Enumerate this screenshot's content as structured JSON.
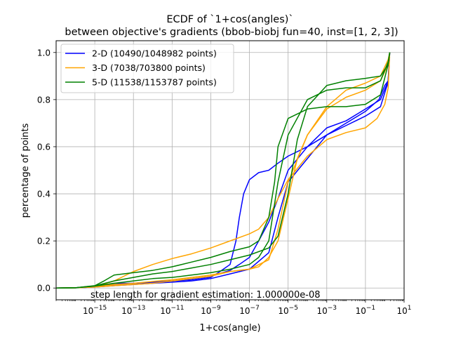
{
  "chart_data": {
    "type": "line",
    "title": [
      "ECDF of `1+cos(angles)`",
      "between objective's gradients (bbob-biobj fun=40, inst=[1, 2, 3])"
    ],
    "xlabel": "1+cos(angle)",
    "ylabel": "percentage of points",
    "xscale": "log",
    "xlim": [
      1e-17,
      10.0
    ],
    "ylim": [
      -0.05,
      1.05
    ],
    "xticks": [
      1e-15,
      1e-13,
      1e-11,
      1e-09,
      1e-07,
      1e-05,
      0.001,
      0.1,
      10.0
    ],
    "xtick_labels": [
      {
        "base": "10",
        "exp": "−15"
      },
      {
        "base": "10",
        "exp": "−13"
      },
      {
        "base": "10",
        "exp": "−11"
      },
      {
        "base": "10",
        "exp": "−9"
      },
      {
        "base": "10",
        "exp": "−7"
      },
      {
        "base": "10",
        "exp": "−5"
      },
      {
        "base": "10",
        "exp": "−3"
      },
      {
        "base": "10",
        "exp": "−1"
      },
      {
        "base": "10",
        "exp": "1"
      }
    ],
    "yticks": [
      0.0,
      0.2,
      0.4,
      0.6,
      0.8,
      1.0
    ],
    "ytick_labels": [
      "0.0",
      "0.2",
      "0.4",
      "0.6",
      "0.8",
      "1.0"
    ],
    "grid": true,
    "legend_position": "top-left",
    "annotation": "step length for gradient estimation: 1.000000e-08",
    "series": [
      {
        "name": "2-D (10490/1048982 points)",
        "color": "#0000ff",
        "curves": [
          [
            [
              1e-17,
              0
            ],
            [
              1e-16,
              0.001
            ],
            [
              3e-16,
              0.002
            ],
            [
              1e-15,
              0.005
            ],
            [
              1e-14,
              0.02
            ],
            [
              1e-13,
              0.02
            ],
            [
              1e-12,
              0.025
            ],
            [
              1e-11,
              0.03
            ],
            [
              1e-10,
              0.035
            ],
            [
              1e-09,
              0.045
            ],
            [
              3e-09,
              0.07
            ],
            [
              1e-08,
              0.1
            ],
            [
              2e-08,
              0.2
            ],
            [
              3e-08,
              0.3
            ],
            [
              5e-08,
              0.4
            ],
            [
              1e-07,
              0.46
            ],
            [
              3e-07,
              0.49
            ],
            [
              1e-06,
              0.5
            ],
            [
              3e-06,
              0.53
            ],
            [
              1e-05,
              0.56
            ],
            [
              0.0001,
              0.6
            ],
            [
              0.001,
              0.65
            ],
            [
              0.01,
              0.69
            ],
            [
              0.1,
              0.73
            ],
            [
              0.6,
              0.77
            ],
            [
              1.2,
              0.85
            ],
            [
              1.5,
              0.87
            ],
            [
              1.8,
              1.0
            ]
          ],
          [
            [
              1e-17,
              0
            ],
            [
              1e-16,
              0.001
            ],
            [
              1e-15,
              0.004
            ],
            [
              1e-14,
              0.01
            ],
            [
              1e-13,
              0.015
            ],
            [
              1e-12,
              0.02
            ],
            [
              1e-11,
              0.025
            ],
            [
              1e-10,
              0.03
            ],
            [
              1e-09,
              0.04
            ],
            [
              1e-08,
              0.06
            ],
            [
              1e-07,
              0.08
            ],
            [
              1e-06,
              0.15
            ],
            [
              3e-06,
              0.3
            ],
            [
              1e-05,
              0.45
            ],
            [
              0.0001,
              0.55
            ],
            [
              0.001,
              0.65
            ],
            [
              0.01,
              0.7
            ],
            [
              0.1,
              0.75
            ],
            [
              0.5,
              0.8
            ],
            [
              1.0,
              0.86
            ],
            [
              1.5,
              0.88
            ],
            [
              1.8,
              1.0
            ]
          ],
          [
            [
              1e-17,
              0
            ],
            [
              1e-16,
              0.001
            ],
            [
              1e-15,
              0.006
            ],
            [
              1e-14,
              0.015
            ],
            [
              1e-13,
              0.02
            ],
            [
              1e-12,
              0.025
            ],
            [
              1e-11,
              0.03
            ],
            [
              1e-10,
              0.04
            ],
            [
              1e-09,
              0.05
            ],
            [
              1e-08,
              0.075
            ],
            [
              3e-08,
              0.1
            ],
            [
              1e-07,
              0.13
            ],
            [
              3e-07,
              0.2
            ],
            [
              1e-06,
              0.28
            ],
            [
              3e-06,
              0.38
            ],
            [
              1e-05,
              0.5
            ],
            [
              0.0001,
              0.6
            ],
            [
              0.001,
              0.68
            ],
            [
              0.01,
              0.71
            ],
            [
              0.1,
              0.76
            ],
            [
              0.6,
              0.8
            ],
            [
              1.2,
              0.86
            ],
            [
              1.5,
              0.88
            ],
            [
              1.8,
              1.0
            ]
          ]
        ]
      },
      {
        "name": "3-D (7038/703800 points)",
        "color": "#ffa500",
        "curves": [
          [
            [
              1e-17,
              0
            ],
            [
              1e-16,
              0.001
            ],
            [
              1e-15,
              0.005
            ],
            [
              1e-14,
              0.03
            ],
            [
              1e-13,
              0.07
            ],
            [
              1e-12,
              0.1
            ],
            [
              1e-11,
              0.125
            ],
            [
              1e-10,
              0.145
            ],
            [
              1e-09,
              0.17
            ],
            [
              1e-08,
              0.2
            ],
            [
              1e-07,
              0.23
            ],
            [
              3e-07,
              0.25
            ],
            [
              1e-06,
              0.3
            ],
            [
              3e-06,
              0.38
            ],
            [
              1e-05,
              0.46
            ],
            [
              0.0001,
              0.56
            ],
            [
              0.001,
              0.63
            ],
            [
              0.01,
              0.66
            ],
            [
              0.1,
              0.68
            ],
            [
              0.4,
              0.72
            ],
            [
              1.0,
              0.78
            ],
            [
              1.5,
              0.85
            ],
            [
              1.8,
              1.0
            ]
          ],
          [
            [
              1e-17,
              0
            ],
            [
              1e-16,
              0.001
            ],
            [
              1e-15,
              0.004
            ],
            [
              1e-14,
              0.01
            ],
            [
              1e-13,
              0.015
            ],
            [
              1e-12,
              0.02
            ],
            [
              1e-11,
              0.03
            ],
            [
              1e-10,
              0.04
            ],
            [
              1e-09,
              0.05
            ],
            [
              1e-08,
              0.07
            ],
            [
              1e-07,
              0.08
            ],
            [
              1e-06,
              0.12
            ],
            [
              3e-06,
              0.25
            ],
            [
              1e-05,
              0.45
            ],
            [
              0.0001,
              0.65
            ],
            [
              0.001,
              0.76
            ],
            [
              0.01,
              0.81
            ],
            [
              0.1,
              0.84
            ],
            [
              0.6,
              0.88
            ],
            [
              1.5,
              0.95
            ],
            [
              1.8,
              0.98
            ]
          ],
          [
            [
              1e-17,
              0
            ],
            [
              1e-16,
              0.001
            ],
            [
              1e-15,
              0.005
            ],
            [
              1e-14,
              0.015
            ],
            [
              1e-13,
              0.02
            ],
            [
              1e-12,
              0.028
            ],
            [
              1e-11,
              0.035
            ],
            [
              1e-10,
              0.045
            ],
            [
              1e-09,
              0.055
            ],
            [
              1e-08,
              0.07
            ],
            [
              1e-07,
              0.08
            ],
            [
              3e-07,
              0.09
            ],
            [
              1e-06,
              0.13
            ],
            [
              3e-06,
              0.2
            ],
            [
              1e-05,
              0.38
            ],
            [
              3e-05,
              0.55
            ],
            [
              0.0001,
              0.65
            ],
            [
              0.001,
              0.77
            ],
            [
              0.01,
              0.84
            ],
            [
              0.1,
              0.87
            ],
            [
              0.6,
              0.9
            ],
            [
              1.5,
              0.97
            ],
            [
              1.8,
              1.0
            ]
          ]
        ]
      },
      {
        "name": "5-D (11538/1153787 points)",
        "color": "#008000",
        "curves": [
          [
            [
              1e-17,
              0
            ],
            [
              1e-16,
              0.001
            ],
            [
              1e-15,
              0.01
            ],
            [
              3e-15,
              0.03
            ],
            [
              1e-14,
              0.055
            ],
            [
              1e-13,
              0.065
            ],
            [
              1e-12,
              0.075
            ],
            [
              1e-11,
              0.09
            ],
            [
              1e-10,
              0.11
            ],
            [
              1e-09,
              0.13
            ],
            [
              1e-08,
              0.155
            ],
            [
              1e-07,
              0.175
            ],
            [
              3e-07,
              0.2
            ],
            [
              1e-06,
              0.3
            ],
            [
              2e-06,
              0.45
            ],
            [
              3e-06,
              0.6
            ],
            [
              1e-05,
              0.72
            ],
            [
              0.0001,
              0.76
            ],
            [
              0.001,
              0.77
            ],
            [
              0.01,
              0.77
            ],
            [
              0.1,
              0.78
            ],
            [
              0.6,
              0.82
            ],
            [
              1.5,
              0.95
            ],
            [
              1.8,
              1.0
            ]
          ],
          [
            [
              1e-17,
              0
            ],
            [
              1e-16,
              0.001
            ],
            [
              1e-15,
              0.008
            ],
            [
              1e-14,
              0.02
            ],
            [
              1e-13,
              0.03
            ],
            [
              1e-12,
              0.04
            ],
            [
              1e-11,
              0.045
            ],
            [
              1e-10,
              0.055
            ],
            [
              1e-09,
              0.065
            ],
            [
              1e-08,
              0.08
            ],
            [
              1e-07,
              0.1
            ],
            [
              3e-07,
              0.13
            ],
            [
              1e-06,
              0.2
            ],
            [
              3e-06,
              0.45
            ],
            [
              1e-05,
              0.65
            ],
            [
              0.0001,
              0.8
            ],
            [
              0.001,
              0.84
            ],
            [
              0.01,
              0.85
            ],
            [
              0.1,
              0.85
            ],
            [
              0.6,
              0.88
            ],
            [
              1.5,
              0.96
            ],
            [
              1.8,
              1.0
            ]
          ],
          [
            [
              1e-17,
              0
            ],
            [
              1e-16,
              0.001
            ],
            [
              1e-15,
              0.009
            ],
            [
              1e-14,
              0.03
            ],
            [
              1e-13,
              0.045
            ],
            [
              1e-12,
              0.06
            ],
            [
              1e-11,
              0.07
            ],
            [
              1e-10,
              0.085
            ],
            [
              1e-09,
              0.1
            ],
            [
              1e-08,
              0.12
            ],
            [
              1e-07,
              0.14
            ],
            [
              1e-06,
              0.17
            ],
            [
              3e-06,
              0.22
            ],
            [
              1e-05,
              0.4
            ],
            [
              3e-05,
              0.63
            ],
            [
              0.0001,
              0.77
            ],
            [
              0.001,
              0.86
            ],
            [
              0.01,
              0.88
            ],
            [
              0.1,
              0.89
            ],
            [
              0.6,
              0.9
            ],
            [
              1.5,
              0.95
            ],
            [
              1.8,
              1.0
            ]
          ]
        ]
      }
    ]
  }
}
